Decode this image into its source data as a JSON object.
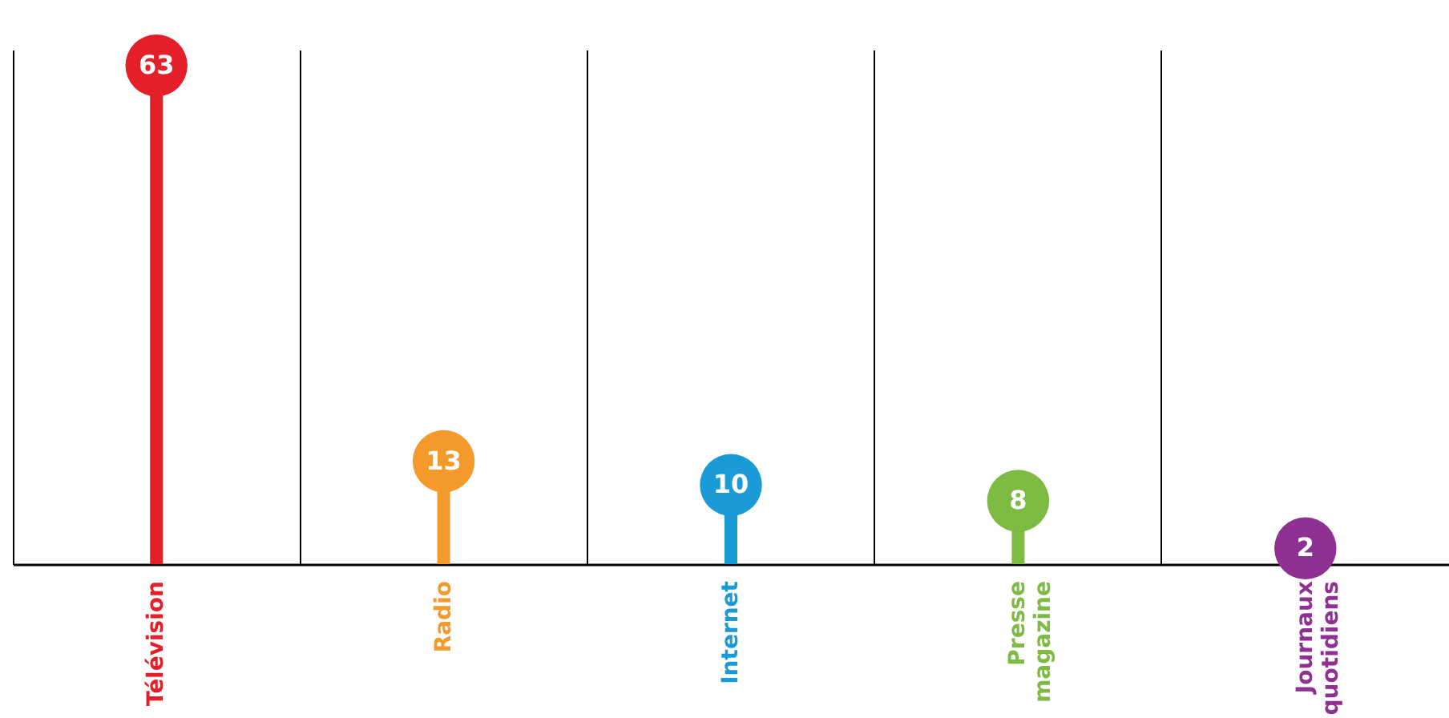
{
  "chart_data": {
    "type": "lollipop",
    "categories": [
      "Télévision",
      "Radio",
      "Internet",
      "Presse magazine",
      "Journaux quotidiens"
    ],
    "values": [
      63,
      13,
      10,
      8,
      2
    ],
    "colors": [
      "#e3202a",
      "#f39a2a",
      "#1a9bd7",
      "#7dbb42",
      "#8e3192"
    ],
    "data_labels": true,
    "grid": "x",
    "legend": false
  }
}
